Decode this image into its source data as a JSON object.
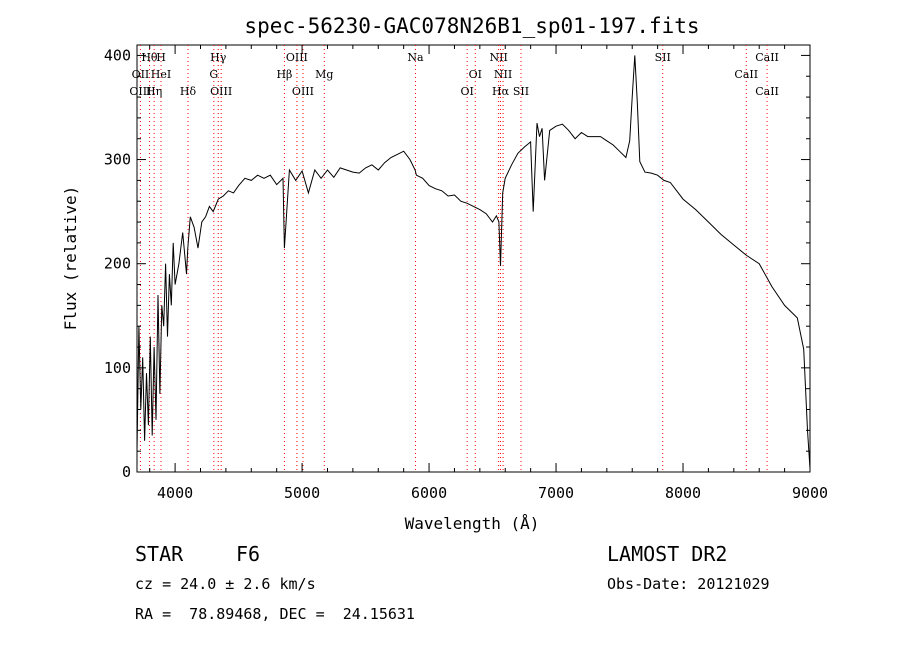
{
  "chart_data": {
    "type": "line",
    "title": "spec-56230-GAC078N26B1_sp01-197.fits",
    "xlabel": "Wavelength (Å)",
    "ylabel": "Flux (relative)",
    "xlim": [
      3700,
      9000
    ],
    "ylim": [
      0,
      410
    ],
    "xticks": [
      4000,
      5000,
      6000,
      7000,
      8000,
      9000
    ],
    "yticks": [
      0,
      100,
      200,
      300,
      400
    ],
    "grid": false,
    "line_color": "#000000",
    "marker_color": "#ff0000",
    "series": [
      {
        "x": [
          3700,
          3715,
          3730,
          3745,
          3760,
          3775,
          3790,
          3805,
          3820,
          3835,
          3850,
          3865,
          3880,
          3895,
          3910,
          3925,
          3940,
          3955,
          3970,
          3985,
          4000,
          4030,
          4060,
          4090,
          4100,
          4120,
          4150,
          4180,
          4210,
          4240,
          4270,
          4300,
          4340,
          4380,
          4420,
          4460,
          4500,
          4550,
          4600,
          4650,
          4700,
          4750,
          4800,
          4850,
          4861,
          4900,
          4950,
          5000,
          5050,
          5100,
          5150,
          5200,
          5250,
          5300,
          5350,
          5400,
          5450,
          5500,
          5550,
          5600,
          5650,
          5700,
          5750,
          5800,
          5850,
          5890,
          5900,
          5950,
          6000,
          6050,
          6100,
          6150,
          6200,
          6250,
          6300,
          6350,
          6400,
          6450,
          6500,
          6530,
          6550,
          6563,
          6580,
          6600,
          6650,
          6700,
          6750,
          6800,
          6820,
          6850,
          6870,
          6890,
          6910,
          6950,
          7000,
          7050,
          7100,
          7150,
          7200,
          7250,
          7300,
          7350,
          7400,
          7450,
          7500,
          7550,
          7580,
          7600,
          7620,
          7640,
          7660,
          7700,
          7750,
          7800,
          7850,
          7900,
          7950,
          8000,
          8100,
          8200,
          8300,
          8400,
          8500,
          8600,
          8700,
          8800,
          8900,
          8950,
          8980,
          9000
        ],
        "y": [
          20,
          140,
          60,
          110,
          30,
          95,
          45,
          130,
          35,
          120,
          50,
          170,
          75,
          160,
          140,
          200,
          130,
          190,
          160,
          220,
          180,
          200,
          230,
          190,
          215,
          245,
          235,
          215,
          240,
          245,
          255,
          250,
          262,
          265,
          270,
          268,
          275,
          282,
          280,
          285,
          282,
          285,
          276,
          282,
          215,
          290,
          280,
          289,
          268,
          290,
          282,
          290,
          283,
          292,
          290,
          288,
          287,
          292,
          295,
          290,
          297,
          302,
          305,
          308,
          300,
          290,
          285,
          282,
          275,
          272,
          270,
          265,
          266,
          260,
          258,
          255,
          252,
          248,
          240,
          246,
          240,
          198,
          268,
          282,
          295,
          306,
          312,
          317,
          250,
          335,
          322,
          330,
          280,
          328,
          332,
          334,
          328,
          320,
          326,
          322,
          322,
          322,
          318,
          314,
          308,
          302,
          318,
          360,
          400,
          355,
          298,
          288,
          287,
          285,
          280,
          278,
          270,
          262,
          252,
          240,
          228,
          218,
          208,
          200,
          178,
          160,
          148,
          118,
          40,
          3
        ]
      }
    ],
    "line_markers": [
      {
        "label": "Hθ",
        "x": 3798,
        "row": 1
      },
      {
        "label": "OII",
        "x": 3727,
        "row": 2
      },
      {
        "label": "OIII",
        "x": 3727,
        "row": 3
      },
      {
        "label": "H",
        "x": 3889,
        "row": 1
      },
      {
        "label": "HeI",
        "x": 3889,
        "row": 2
      },
      {
        "label": "Hη",
        "x": 3835,
        "row": 3
      },
      {
        "label": "Hδ",
        "x": 4102,
        "row": 3
      },
      {
        "label": "Hγ",
        "x": 4340,
        "row": 1
      },
      {
        "label": "G",
        "x": 4305,
        "row": 2
      },
      {
        "label": "OIII",
        "x": 4363,
        "row": 3
      },
      {
        "label": "OIII",
        "x": 4959,
        "row": 1
      },
      {
        "label": "Hβ",
        "x": 4861,
        "row": 2
      },
      {
        "label": "OIII",
        "x": 5007,
        "row": 3
      },
      {
        "label": "Mg",
        "x": 5175,
        "row": 2
      },
      {
        "label": "Na",
        "x": 5893,
        "row": 1
      },
      {
        "label": "NII",
        "x": 6548,
        "row": 1
      },
      {
        "label": "OI",
        "x": 6364,
        "row": 2
      },
      {
        "label": "OI",
        "x": 6300,
        "row": 3
      },
      {
        "label": "NII",
        "x": 6583,
        "row": 2
      },
      {
        "label": "Hα",
        "x": 6563,
        "row": 3
      },
      {
        "label": "SII",
        "x": 6724,
        "row": 3
      },
      {
        "label": "SII",
        "x": 7840,
        "row": 1
      },
      {
        "label": "CaII",
        "x": 8662,
        "row": 1
      },
      {
        "label": "CaII",
        "x": 8498,
        "row": 2
      },
      {
        "label": "CaII",
        "x": 8662,
        "row": 3
      }
    ]
  },
  "info": {
    "object_class": "STAR",
    "subclass": "F6",
    "survey": "LAMOST DR2",
    "redshift_line": "cz = 24.0 ± 2.6 km/s",
    "obs_date_line": "Obs-Date: 20121029",
    "coords_line": "RA =  78.89468, DEC =  24.15631"
  }
}
